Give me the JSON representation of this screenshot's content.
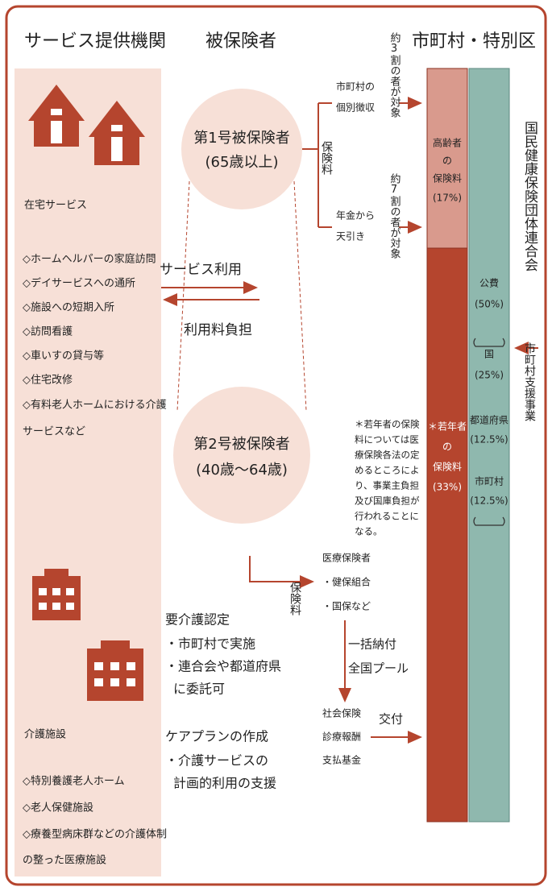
{
  "headers": {
    "providers": "サービス提供機関",
    "insured": "被保険者",
    "municipality": "市町村・特別区"
  },
  "home_services": {
    "label": "在宅サービス",
    "items": [
      "◇ホームヘルパーの家庭訪問",
      "◇デイサービスへの通所",
      "◇施設への短期入所",
      "◇訪問看護",
      "◇車いすの貸与等",
      "◇住宅改修",
      "◇有料老人ホームにおける介護",
      "サービスなど"
    ]
  },
  "facilities": {
    "label": "介護施設",
    "items": [
      "◇特別養護老人ホーム",
      "◇老人保健施設",
      "◇療養型病床群などの介護体制",
      "の整った医療施設"
    ]
  },
  "first_insured": [
    "第1号被保険者",
    "(65歳以上)"
  ],
  "second_insured": [
    "第2号被保険者",
    "(40歳～64歳)"
  ],
  "premium_1": "保険料",
  "collection": {
    "individual": [
      "市町村の",
      "個別徴収"
    ],
    "individual_share": "約3割の者が対象",
    "pension": [
      "年金から",
      "天引き"
    ],
    "pension_share": "約7割の者が対象"
  },
  "service_use": "サービス利用",
  "fee": "利用料負担",
  "certification": [
    "要介護認定",
    "・市町村で実施",
    "・連合会や都道府県",
    "に委託可"
  ],
  "care_plan": [
    "ケアプランの作成",
    "・介護サービスの",
    "計画的利用の支援"
  ],
  "premium_2": "保険料",
  "medical_insurers": [
    "医療保険者",
    "・健保組合",
    "・国保など"
  ],
  "pool": [
    "一括納付",
    "全国プール"
  ],
  "fund": [
    "社会保険",
    "診療報酬",
    "支払基金"
  ],
  "grant": "交付",
  "note": [
    "＊若年者の保険",
    "料については医",
    "療保険各法の定",
    "めるところによ",
    "り、事業主負担",
    "及び国庫負担が",
    "行われることに",
    "なる。"
  ],
  "funding": {
    "elderly": [
      "高齢者",
      "の",
      "保険料",
      "(17%)"
    ],
    "young": [
      "＊若年者",
      "の",
      "保険料",
      "(33%)"
    ],
    "public": [
      "公費",
      "(50%)"
    ],
    "national": [
      "国",
      "(25%)"
    ],
    "prefecture": [
      "都道府県",
      "(12.5%)"
    ],
    "municipal": [
      "市町村",
      "(12.5%)"
    ]
  },
  "federation": "国民健康保険団体連合会",
  "support": "市町村支援事業"
}
